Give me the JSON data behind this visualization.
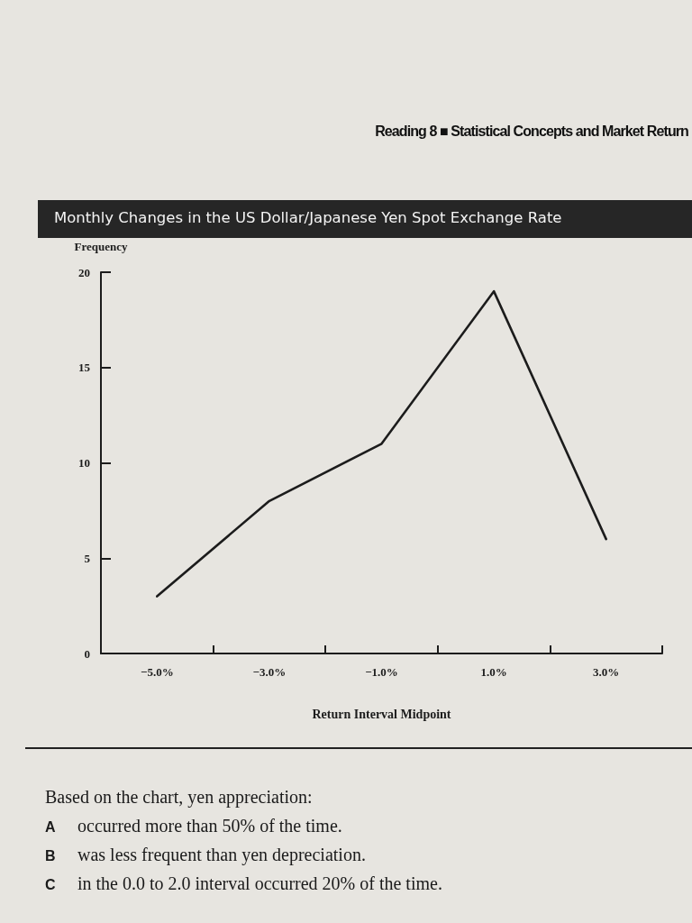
{
  "chart_data": {
    "type": "line",
    "title": "Monthly Changes in the US Dollar/Japanese Yen Spot Exchange Rate",
    "xlabel": "Return Interval Midpoint",
    "ylabel": "Frequency",
    "categories": [
      "−5.0%",
      "−3.0%",
      "−1.0%",
      "1.0%",
      "3.0%"
    ],
    "series": [
      {
        "color": "#1c1c1c",
        "values": [
          3,
          8,
          11,
          19,
          6
        ]
      }
    ],
    "ylim": [
      0,
      20
    ],
    "yticks": [
      0,
      5,
      10,
      15,
      20
    ],
    "marker": "none",
    "line_style": "solid",
    "annotations": [
      "Reading 8 ■ Statistical Concepts and Market Return",
      "Based on the chart, yen appreciation:",
      "A occurred more than 50% of the time.",
      "B was less frequent than yen depreciation.",
      "C in the 0.0 to 2.0 interval occurred 20% of the time."
    ]
  }
}
